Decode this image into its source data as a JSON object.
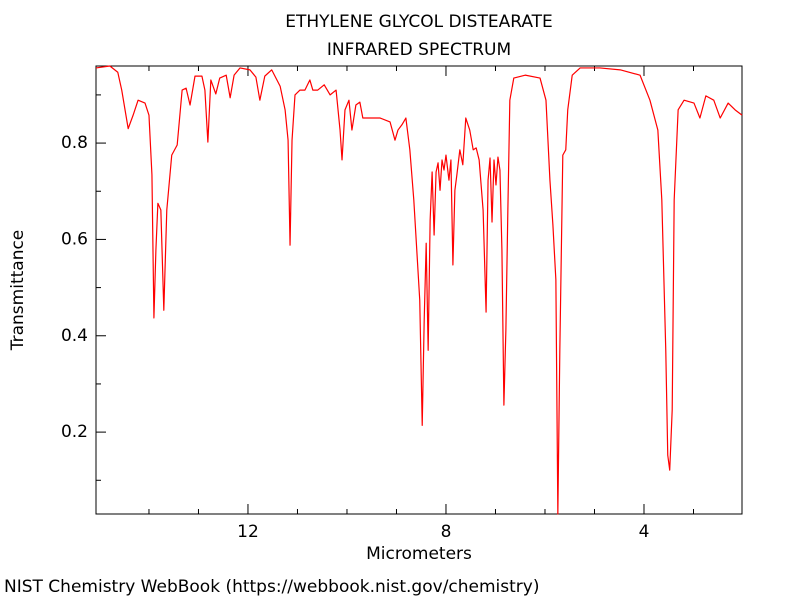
{
  "chart_data": {
    "type": "line",
    "title": "ETHYLENE GLYCOL DISTEARATE",
    "subtitle": "INFRARED SPECTRUM",
    "x_label": "Micrometers",
    "y_label": "Transmittance",
    "color": "#ff0000",
    "xlim": [
      15.07,
      2.02
    ],
    "ylim": [
      0.03,
      0.96
    ],
    "xticks": [
      12,
      8,
      4
    ],
    "xminorticks": [
      14,
      13,
      11,
      10,
      9,
      7,
      6,
      5,
      3
    ],
    "yticks": [
      0.2,
      0.4,
      0.6,
      0.8
    ],
    "yminorticks": [
      0.1,
      0.3,
      0.5,
      0.7,
      0.9
    ],
    "x": [
      15.07,
      14.79,
      14.63,
      14.55,
      14.42,
      14.32,
      14.22,
      14.08,
      14.0,
      13.94,
      13.9,
      13.86,
      13.82,
      13.76,
      13.7,
      13.64,
      13.54,
      13.43,
      13.33,
      13.25,
      13.17,
      13.07,
      12.93,
      12.87,
      12.81,
      12.75,
      12.65,
      12.57,
      12.44,
      12.36,
      12.28,
      12.16,
      11.96,
      11.84,
      11.76,
      11.66,
      11.52,
      11.35,
      11.25,
      11.19,
      11.15,
      11.11,
      11.05,
      10.95,
      10.85,
      10.75,
      10.69,
      10.59,
      10.46,
      10.34,
      10.22,
      10.14,
      10.1,
      10.04,
      9.96,
      9.9,
      9.82,
      9.74,
      9.68,
      9.58,
      9.33,
      9.13,
      9.03,
      8.97,
      8.89,
      8.81,
      8.73,
      8.65,
      8.59,
      8.53,
      8.48,
      8.44,
      8.4,
      8.36,
      8.32,
      8.28,
      8.24,
      8.2,
      8.16,
      8.12,
      8.08,
      8.04,
      8.0,
      7.94,
      7.9,
      7.86,
      7.82,
      7.78,
      7.72,
      7.66,
      7.6,
      7.52,
      7.45,
      7.39,
      7.33,
      7.25,
      7.19,
      7.15,
      7.11,
      7.07,
      7.03,
      6.99,
      6.95,
      6.91,
      6.87,
      6.83,
      6.79,
      6.75,
      6.71,
      6.63,
      6.4,
      6.1,
      5.98,
      5.9,
      5.84,
      5.78,
      5.74,
      5.7,
      5.64,
      5.58,
      5.54,
      5.45,
      5.29,
      4.89,
      4.48,
      4.08,
      3.88,
      3.72,
      3.64,
      3.56,
      3.52,
      3.48,
      3.43,
      3.39,
      3.31,
      3.19,
      2.99,
      2.87,
      2.75,
      2.59,
      2.46,
      2.3,
      2.16,
      2.02
    ],
    "values": [
      0.956,
      0.96,
      0.947,
      0.91,
      0.83,
      0.858,
      0.889,
      0.883,
      0.858,
      0.734,
      0.437,
      0.578,
      0.675,
      0.661,
      0.453,
      0.661,
      0.775,
      0.796,
      0.91,
      0.914,
      0.879,
      0.939,
      0.939,
      0.91,
      0.802,
      0.931,
      0.902,
      0.935,
      0.941,
      0.894,
      0.941,
      0.956,
      0.952,
      0.937,
      0.889,
      0.939,
      0.952,
      0.918,
      0.869,
      0.806,
      0.588,
      0.806,
      0.9,
      0.91,
      0.91,
      0.931,
      0.91,
      0.91,
      0.921,
      0.9,
      0.91,
      0.827,
      0.765,
      0.869,
      0.889,
      0.827,
      0.879,
      0.885,
      0.852,
      0.852,
      0.852,
      0.844,
      0.806,
      0.827,
      0.838,
      0.852,
      0.786,
      0.682,
      0.578,
      0.474,
      0.214,
      0.433,
      0.592,
      0.37,
      0.64,
      0.74,
      0.609,
      0.74,
      0.759,
      0.702,
      0.765,
      0.744,
      0.775,
      0.723,
      0.765,
      0.547,
      0.702,
      0.734,
      0.786,
      0.755,
      0.852,
      0.827,
      0.786,
      0.79,
      0.765,
      0.661,
      0.449,
      0.723,
      0.769,
      0.636,
      0.765,
      0.713,
      0.771,
      0.744,
      0.578,
      0.256,
      0.412,
      0.661,
      0.889,
      0.935,
      0.941,
      0.935,
      0.889,
      0.723,
      0.63,
      0.516,
      0.03,
      0.37,
      0.775,
      0.786,
      0.869,
      0.941,
      0.956,
      0.956,
      0.952,
      0.941,
      0.889,
      0.827,
      0.682,
      0.37,
      0.152,
      0.121,
      0.246,
      0.682,
      0.869,
      0.889,
      0.883,
      0.852,
      0.898,
      0.889,
      0.852,
      0.883,
      0.869,
      0.858
    ]
  },
  "footer": "NIST Chemistry WebBook (https://webbook.nist.gov/chemistry)"
}
